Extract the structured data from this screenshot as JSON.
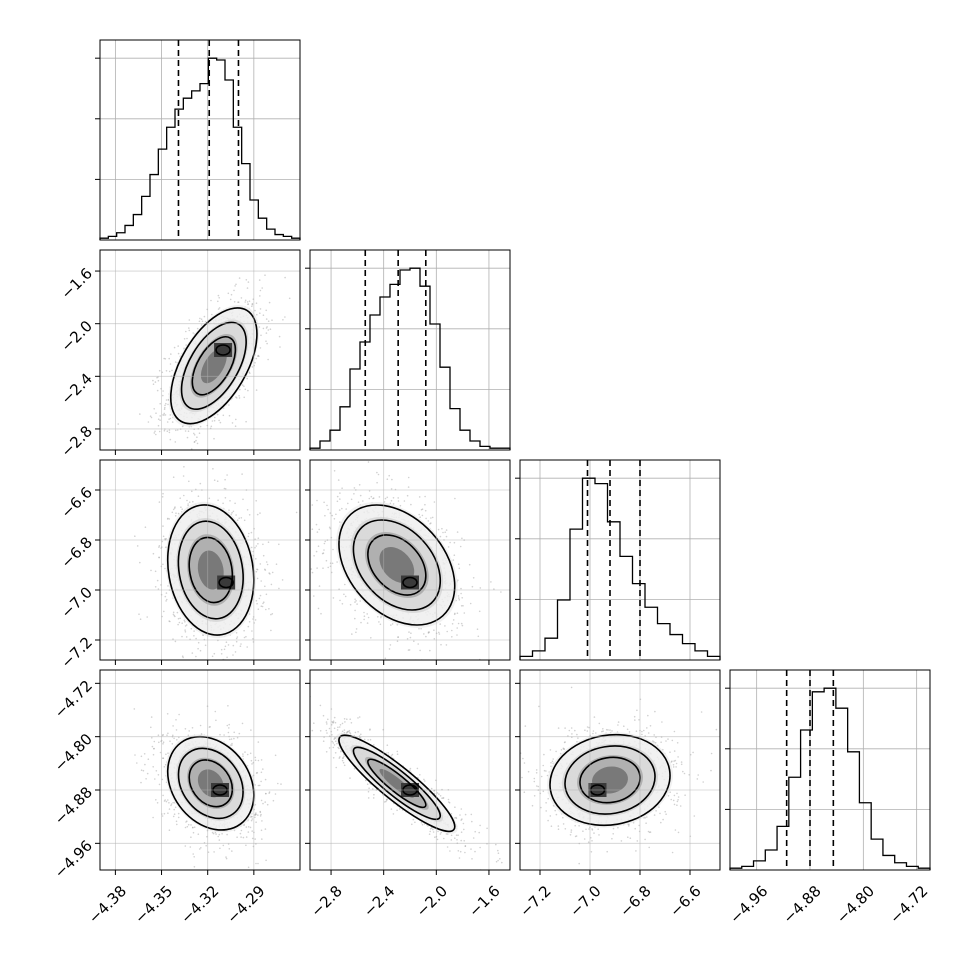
{
  "chart_data": {
    "type": "corner",
    "parameters": [
      {
        "ticks": [
          "−4.38",
          "−4.35",
          "−4.32",
          "−4.29"
        ],
        "tick_values": [
          -4.38,
          -4.35,
          -4.32,
          -4.29
        ],
        "range": [
          -4.39,
          -4.26
        ],
        "quantiles": [
          -4.339,
          -4.319,
          -4.3
        ]
      },
      {
        "ticks": [
          "−2.8",
          "−2.4",
          "−2.0",
          "−1.6"
        ],
        "tick_values": [
          -2.8,
          -2.4,
          -2.0,
          -1.6
        ],
        "range": [
          -2.96,
          -1.44
        ],
        "quantiles": [
          -2.54,
          -2.29,
          -2.08
        ]
      },
      {
        "ticks": [
          "−7.2",
          "−7.0",
          "−6.8",
          "−6.6"
        ],
        "tick_values": [
          -7.2,
          -7.0,
          -6.8,
          -6.6
        ],
        "range": [
          -7.28,
          -6.48
        ],
        "quantiles": [
          -7.01,
          -6.92,
          -6.8
        ]
      },
      {
        "ticks": [
          "−4.96",
          "−4.88",
          "−4.80",
          "−4.72"
        ],
        "tick_values": [
          -4.96,
          -4.88,
          -4.8,
          -4.72
        ],
        "range": [
          -5.0,
          -4.7
        ],
        "quantiles": [
          -4.915,
          -4.88,
          -4.845
        ]
      }
    ],
    "histograms": [
      {
        "counts": [
          1,
          2,
          4,
          8,
          14,
          24,
          36,
          50,
          62,
          72,
          78,
          82,
          86,
          100,
          99,
          88,
          62,
          42,
          22,
          12,
          6,
          3,
          2,
          1
        ]
      },
      {
        "counts": [
          1,
          5,
          11,
          24,
          45,
          60,
          75,
          85,
          92,
          100,
          101,
          91,
          70,
          46,
          23,
          11,
          5,
          2,
          1,
          1
        ]
      },
      {
        "counts": [
          2,
          5,
          12,
          33,
          72,
          100,
          97,
          76,
          57,
          42,
          29,
          20,
          14,
          9,
          5,
          2
        ]
      },
      {
        "counts": [
          1,
          2,
          5,
          11,
          24,
          51,
          77,
          98,
          100,
          89,
          65,
          37,
          17,
          8,
          4,
          2,
          1
        ]
      }
    ],
    "pairs": [
      {
        "row": 1,
        "col": 0,
        "center": [
          -4.316,
          -2.32
        ],
        "sd": [
          0.014,
          0.22
        ],
        "corr": 0.55,
        "peak": [
          -4.31,
          -2.2
        ]
      },
      {
        "row": 2,
        "col": 0,
        "center": [
          -4.318,
          -6.92
        ],
        "sd": [
          0.014,
          0.13
        ],
        "corr": -0.15,
        "peak": [
          -4.308,
          -6.97
        ]
      },
      {
        "row": 2,
        "col": 1,
        "center": [
          -2.3,
          -6.9
        ],
        "sd": [
          0.22,
          0.12
        ],
        "corr": -0.35,
        "peak": [
          -2.2,
          -6.97
        ]
      },
      {
        "row": 3,
        "col": 0,
        "center": [
          -4.318,
          -4.87
        ],
        "sd": [
          0.014,
          0.035
        ],
        "corr": -0.25,
        "peak": [
          -4.312,
          -4.88
        ]
      },
      {
        "row": 3,
        "col": 1,
        "center": [
          -2.3,
          -4.87
        ],
        "sd": [
          0.22,
          0.036
        ],
        "corr": -0.9,
        "peak": [
          -2.2,
          -4.88
        ]
      },
      {
        "row": 3,
        "col": 2,
        "center": [
          -6.92,
          -4.865
        ],
        "sd": [
          0.12,
          0.034
        ],
        "corr": 0.1,
        "peak": [
          -6.97,
          -4.88
        ]
      }
    ],
    "grid": true,
    "colors": {
      "line": "#000000",
      "grid": "#b0b0b0",
      "density_dark": "#3a3a3a",
      "density_light": "#d6d6d6"
    }
  }
}
